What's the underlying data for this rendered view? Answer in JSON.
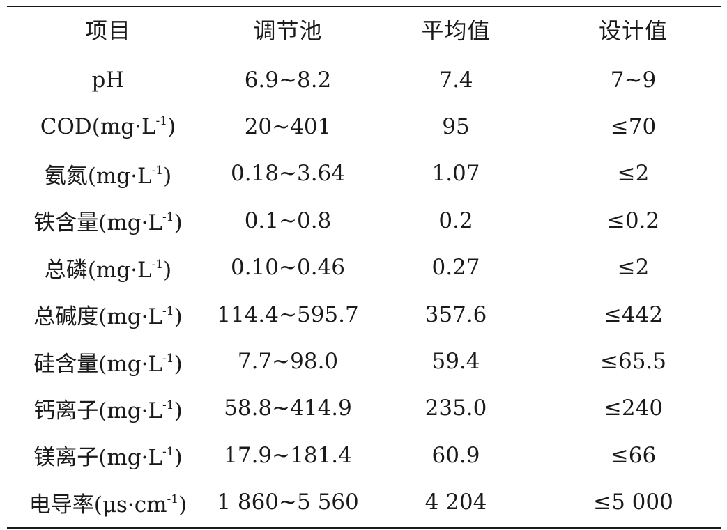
{
  "table": {
    "headers": [
      "项目",
      "调节池",
      "平均值",
      "设计值"
    ],
    "rows": [
      {
        "name": "pH",
        "unit": "",
        "sup": "",
        "pool": "6.9~8.2",
        "avg": "7.4",
        "design": "7~9"
      },
      {
        "name": "COD",
        "unit": "mg·L",
        "sup": "-1",
        "pool": "20~401",
        "avg": "95",
        "design": "≤70"
      },
      {
        "name": "氨氮",
        "unit": "mg·L",
        "sup": "-1",
        "pool": "0.18~3.64",
        "avg": "1.07",
        "design": "≤2"
      },
      {
        "name": "铁含量",
        "unit": "mg·L",
        "sup": "-1",
        "pool": "0.1~0.8",
        "avg": "0.2",
        "design": "≤0.2"
      },
      {
        "name": "总磷",
        "unit": "mg·L",
        "sup": "-1",
        "pool": "0.10~0.46",
        "avg": "0.27",
        "design": "≤2"
      },
      {
        "name": "总碱度",
        "unit": "mg·L",
        "sup": "-1",
        "pool": "114.4~595.7",
        "avg": "357.6",
        "design": "≤442"
      },
      {
        "name": "硅含量",
        "unit": "mg·L",
        "sup": "-1",
        "pool": "7.7~98.0",
        "avg": "59.4",
        "design": "≤65.5"
      },
      {
        "name": "钙离子",
        "unit": "mg·L",
        "sup": "-1",
        "pool": "58.8~414.9",
        "avg": "235.0",
        "design": "≤240"
      },
      {
        "name": "镁离子",
        "unit": "mg·L",
        "sup": "-1",
        "pool": "17.9~181.4",
        "avg": "60.9",
        "design": "≤66"
      },
      {
        "name": "电导率",
        "unit": "μs·cm",
        "sup": "-1",
        "pool": "1 860~5 560",
        "avg": "4 204",
        "design": "≤5 000"
      }
    ]
  }
}
